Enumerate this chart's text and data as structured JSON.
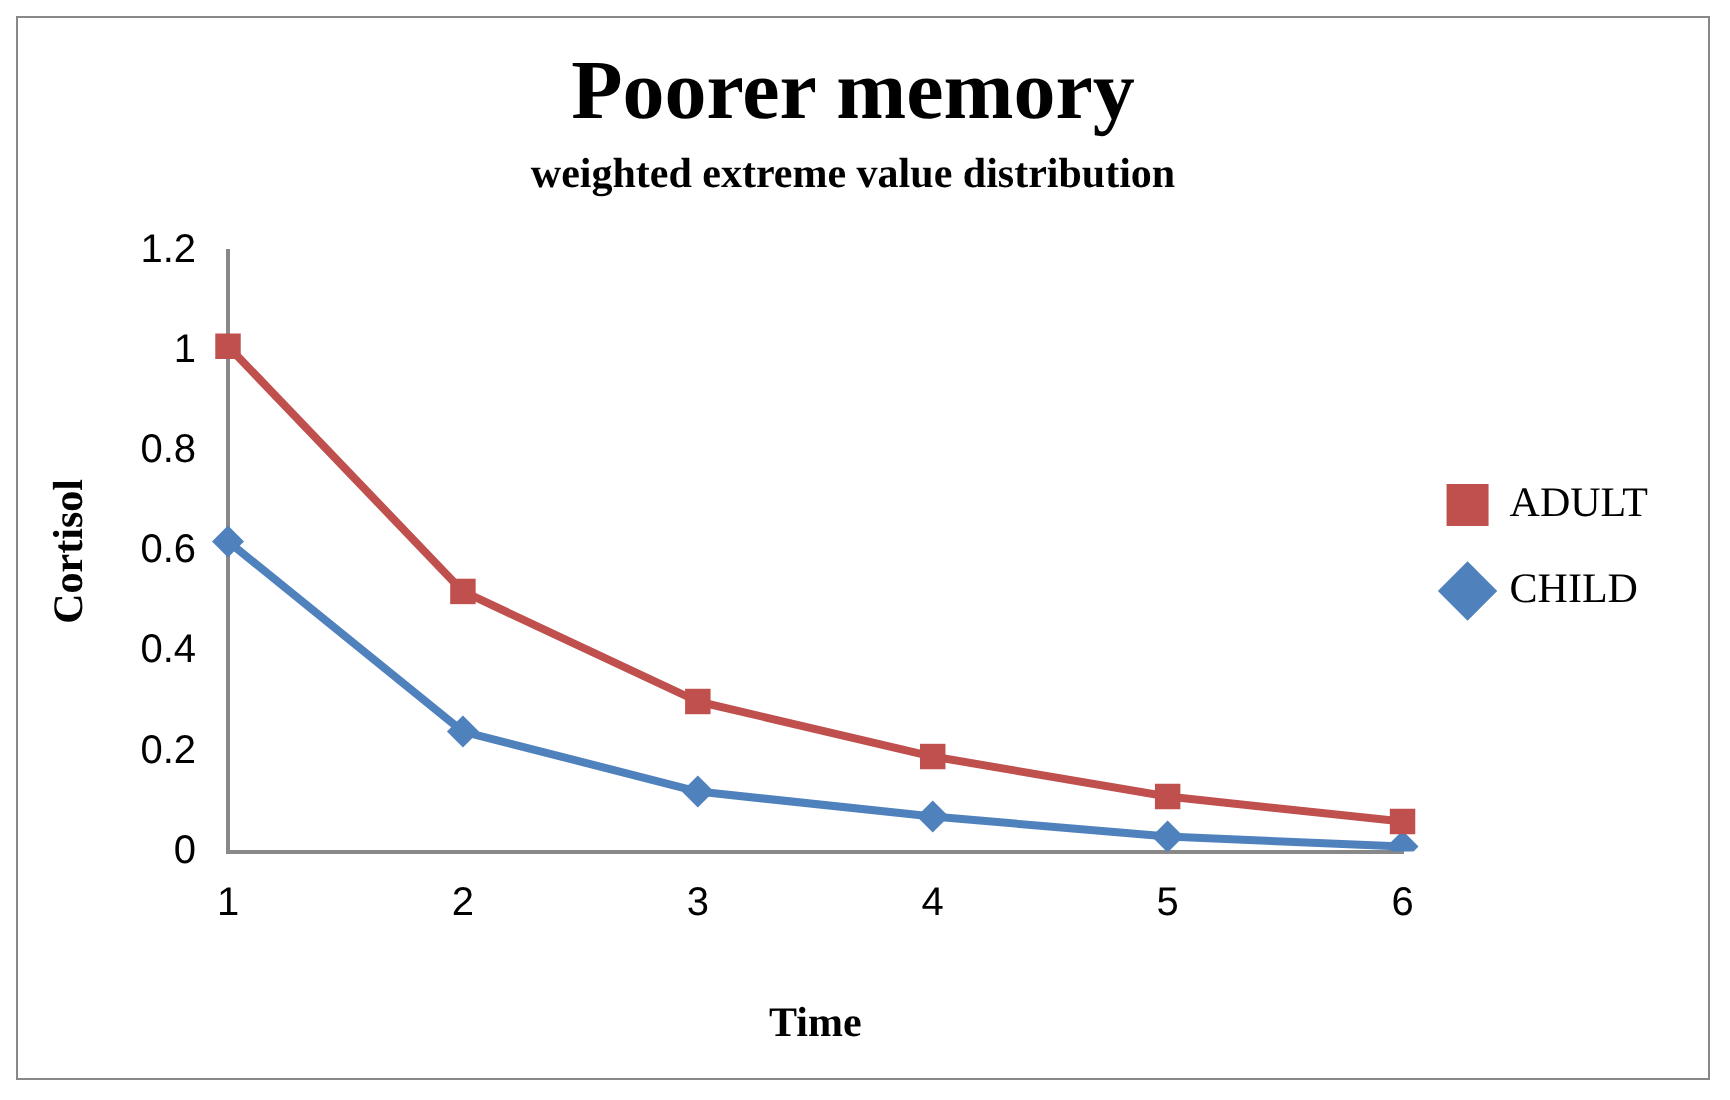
{
  "chart_data": {
    "type": "line",
    "title": "Poorer memory",
    "subtitle": "weighted extreme value distribution",
    "xlabel": "Time",
    "ylabel": "Cortisol",
    "categories": [
      "1",
      "2",
      "3",
      "4",
      "5",
      "6"
    ],
    "series": [
      {
        "name": "ADULT",
        "color": "#c0504d",
        "marker": "square",
        "values": [
          1.01,
          0.52,
          0.3,
          0.19,
          0.11,
          0.06
        ]
      },
      {
        "name": "CHILD",
        "color": "#4f81bd",
        "marker": "diamond",
        "values": [
          0.62,
          0.24,
          0.12,
          0.07,
          0.03,
          0.01
        ]
      }
    ],
    "ylim": [
      0,
      1.2
    ],
    "yticks": [
      0,
      0.2,
      0.4,
      0.6,
      0.8,
      1,
      1.2
    ],
    "grid": false,
    "legend": "right",
    "line_style": "solid"
  }
}
